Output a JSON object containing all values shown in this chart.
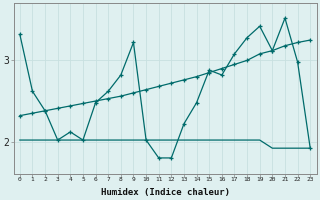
{
  "xlabel": "Humidex (Indice chaleur)",
  "bg_color": "#dff0f0",
  "line_color": "#006b6b",
  "grid_color_v": "#c8e0e0",
  "grid_color_h": "#c8e0e0",
  "ylim": [
    1.6,
    3.7
  ],
  "xlim": [
    -0.5,
    23.5
  ],
  "yticks": [
    2,
    3
  ],
  "xticks": [
    0,
    1,
    2,
    3,
    4,
    5,
    6,
    7,
    8,
    9,
    10,
    11,
    12,
    13,
    14,
    15,
    16,
    17,
    18,
    19,
    20,
    21,
    22,
    23
  ],
  "line1_x": [
    0,
    1,
    2,
    3,
    4,
    5,
    6,
    7,
    8,
    9,
    10,
    11,
    12,
    13,
    14,
    15,
    16,
    17,
    18,
    19,
    20,
    21,
    22,
    23
  ],
  "line1_y": [
    3.32,
    2.62,
    2.38,
    2.02,
    2.12,
    2.02,
    2.48,
    2.62,
    2.82,
    3.22,
    2.02,
    1.8,
    1.8,
    2.22,
    2.48,
    2.88,
    2.82,
    3.08,
    3.28,
    3.42,
    3.12,
    3.52,
    2.98,
    1.92
  ],
  "line2_x": [
    0,
    1,
    2,
    3,
    4,
    5,
    6,
    7,
    8,
    9,
    10,
    11,
    12,
    13,
    14,
    15,
    16,
    17,
    18,
    19,
    20,
    21,
    22,
    23
  ],
  "line2_y": [
    2.32,
    2.35,
    2.38,
    2.41,
    2.44,
    2.47,
    2.5,
    2.53,
    2.56,
    2.6,
    2.64,
    2.68,
    2.72,
    2.76,
    2.8,
    2.85,
    2.9,
    2.95,
    3.0,
    3.08,
    3.12,
    3.18,
    3.22,
    3.25
  ],
  "line3_x": [
    0,
    1,
    2,
    3,
    4,
    5,
    6,
    7,
    8,
    9,
    10,
    11,
    12,
    13,
    14,
    15,
    16,
    17,
    18,
    19,
    20,
    21,
    22,
    23
  ],
  "line3_y": [
    2.02,
    2.02,
    2.02,
    2.02,
    2.02,
    2.02,
    2.02,
    2.02,
    2.02,
    2.02,
    2.02,
    2.02,
    2.02,
    2.02,
    2.02,
    2.02,
    2.02,
    2.02,
    2.02,
    2.02,
    1.92,
    1.92,
    1.92,
    1.92
  ]
}
